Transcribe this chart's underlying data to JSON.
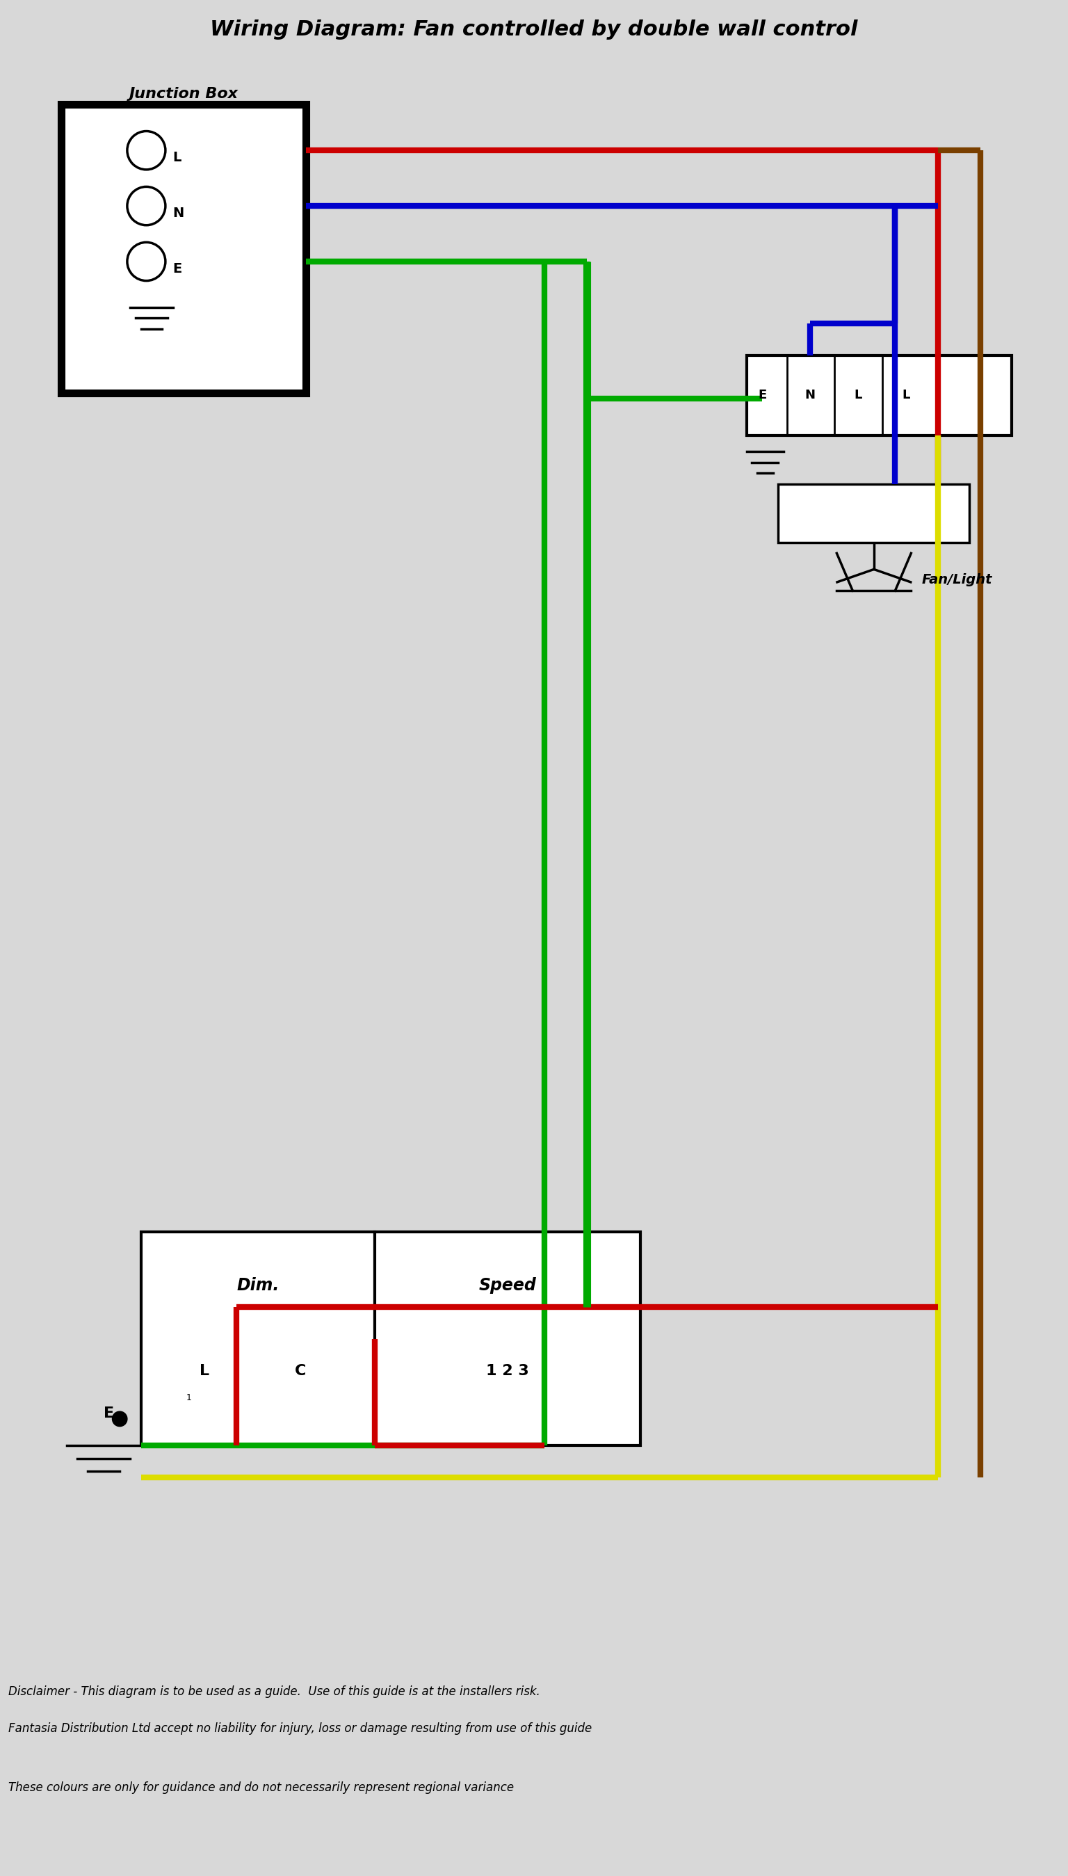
{
  "title": "Wiring Diagram: Fan controlled by double wall control",
  "bg_color": "#d8d8d8",
  "disclaimer1": "Disclaimer - This diagram is to be used as a guide.  Use of this guide is at the installers risk.",
  "disclaimer2": "Fantasia Distribution Ltd accept no liability for injury, loss or damage resulting from use of this guide",
  "disclaimer3": "These colours are only for guidance and do not necessarily represent regional variance",
  "wire_colors": {
    "red": "#cc0000",
    "blue": "#0000cc",
    "green": "#00aa00",
    "yellow": "#dddd00",
    "brown": "#7a4000",
    "black": "#000000"
  }
}
